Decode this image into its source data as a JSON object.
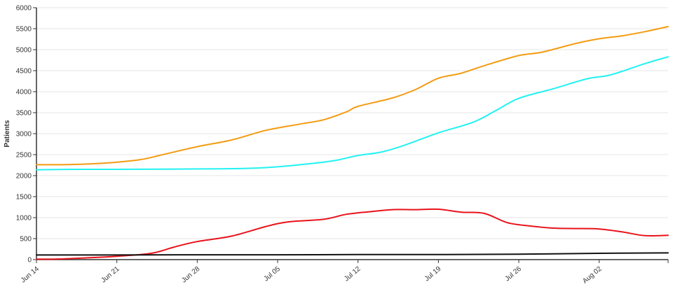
{
  "chart_data": {
    "type": "line",
    "title": "",
    "xlabel": "",
    "ylabel": "Patients",
    "ylim": [
      0,
      6000
    ],
    "y_ticks": [
      0,
      500,
      1000,
      1500,
      2000,
      2500,
      3000,
      3500,
      4000,
      4500,
      5000,
      5500,
      6000
    ],
    "x_range": [
      "2020-06-14",
      "2020-08-08"
    ],
    "x_ticks": [
      {
        "date": "2020-06-14",
        "label": "Jun 14"
      },
      {
        "date": "2020-06-21",
        "label": "Jun 21"
      },
      {
        "date": "2020-06-28",
        "label": "Jun 28"
      },
      {
        "date": "2020-07-05",
        "label": "Jul 05"
      },
      {
        "date": "2020-07-12",
        "label": "Jul 12"
      },
      {
        "date": "2020-07-19",
        "label": "Jul 19"
      },
      {
        "date": "2020-07-26",
        "label": "Jul 26"
      },
      {
        "date": "2020-08-02",
        "label": "Aug 02"
      }
    ],
    "grid": true,
    "legend": "none",
    "series": [
      {
        "color": "#f39c12",
        "points": [
          [
            "2020-06-14",
            2260
          ],
          [
            "2020-06-17",
            2265
          ],
          [
            "2020-06-20",
            2300
          ],
          [
            "2020-06-23",
            2380
          ],
          [
            "2020-06-25",
            2500
          ],
          [
            "2020-06-28",
            2690
          ],
          [
            "2020-07-01",
            2850
          ],
          [
            "2020-07-04",
            3080
          ],
          [
            "2020-07-07",
            3230
          ],
          [
            "2020-07-09",
            3330
          ],
          [
            "2020-07-11",
            3520
          ],
          [
            "2020-07-12",
            3650
          ],
          [
            "2020-07-15",
            3850
          ],
          [
            "2020-07-17",
            4050
          ],
          [
            "2020-07-19",
            4320
          ],
          [
            "2020-07-21",
            4440
          ],
          [
            "2020-07-23",
            4620
          ],
          [
            "2020-07-26",
            4860
          ],
          [
            "2020-07-28",
            4940
          ],
          [
            "2020-07-31",
            5150
          ],
          [
            "2020-08-02",
            5260
          ],
          [
            "2020-08-04",
            5330
          ],
          [
            "2020-08-06",
            5430
          ],
          [
            "2020-08-08",
            5550
          ]
        ]
      },
      {
        "color": "#22f2f2",
        "points": [
          [
            "2020-06-14",
            2140
          ],
          [
            "2020-06-17",
            2150
          ],
          [
            "2020-06-21",
            2150
          ],
          [
            "2020-06-25",
            2155
          ],
          [
            "2020-06-28",
            2160
          ],
          [
            "2020-07-02",
            2170
          ],
          [
            "2020-07-05",
            2210
          ],
          [
            "2020-07-08",
            2290
          ],
          [
            "2020-07-10",
            2360
          ],
          [
            "2020-07-12",
            2480
          ],
          [
            "2020-07-14",
            2560
          ],
          [
            "2020-07-16",
            2720
          ],
          [
            "2020-07-19",
            3020
          ],
          [
            "2020-07-22",
            3270
          ],
          [
            "2020-07-24",
            3550
          ],
          [
            "2020-07-26",
            3840
          ],
          [
            "2020-07-29",
            4070
          ],
          [
            "2020-08-01",
            4310
          ],
          [
            "2020-08-03",
            4400
          ],
          [
            "2020-08-06",
            4670
          ],
          [
            "2020-08-08",
            4830
          ]
        ]
      },
      {
        "color": "#e8131b",
        "points": [
          [
            "2020-06-14",
            10
          ],
          [
            "2020-06-16",
            15
          ],
          [
            "2020-06-19",
            50
          ],
          [
            "2020-06-21",
            80
          ],
          [
            "2020-06-24",
            150
          ],
          [
            "2020-06-26",
            300
          ],
          [
            "2020-06-28",
            430
          ],
          [
            "2020-07-01",
            560
          ],
          [
            "2020-07-04",
            790
          ],
          [
            "2020-07-06",
            900
          ],
          [
            "2020-07-09",
            960
          ],
          [
            "2020-07-11",
            1080
          ],
          [
            "2020-07-13",
            1140
          ],
          [
            "2020-07-15",
            1190
          ],
          [
            "2020-07-17",
            1190
          ],
          [
            "2020-07-19",
            1200
          ],
          [
            "2020-07-21",
            1130
          ],
          [
            "2020-07-23",
            1100
          ],
          [
            "2020-07-25",
            880
          ],
          [
            "2020-07-27",
            800
          ],
          [
            "2020-07-29",
            750
          ],
          [
            "2020-07-31",
            740
          ],
          [
            "2020-08-02",
            730
          ],
          [
            "2020-08-04",
            660
          ],
          [
            "2020-08-06",
            570
          ],
          [
            "2020-08-08",
            580
          ]
        ]
      },
      {
        "color": "#111111",
        "points": [
          [
            "2020-06-14",
            110
          ],
          [
            "2020-06-21",
            110
          ],
          [
            "2020-06-28",
            115
          ],
          [
            "2020-07-05",
            115
          ],
          [
            "2020-07-12",
            120
          ],
          [
            "2020-07-19",
            120
          ],
          [
            "2020-07-26",
            130
          ],
          [
            "2020-08-02",
            150
          ],
          [
            "2020-08-08",
            160
          ]
        ]
      }
    ]
  }
}
